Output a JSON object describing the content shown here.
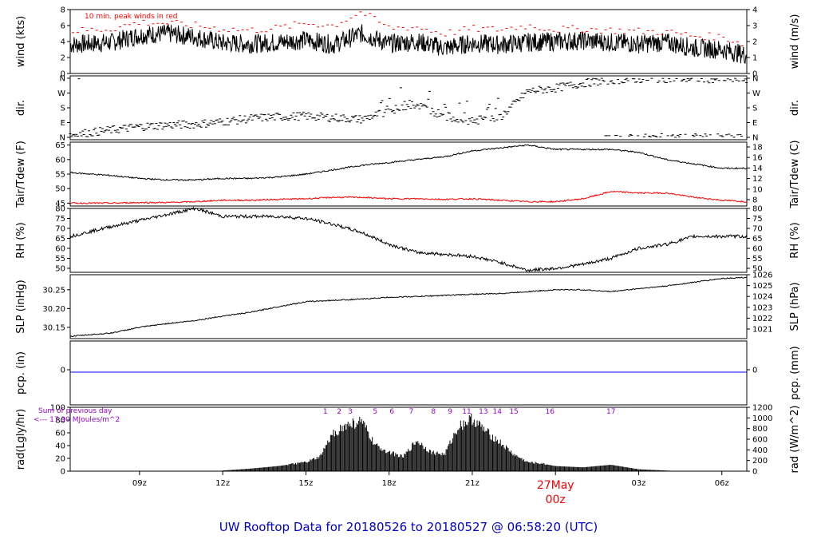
{
  "title": "UW Rooftop Data for 20180526  to  20180527 @ 06:58:20  (UTC)",
  "x_ticks": [
    "09z",
    "12z",
    "15z",
    "18z",
    "21z",
    "27May",
    "03z",
    "06z"
  ],
  "date_label": "27May",
  "date_sub": "00z",
  "colors": {
    "line": "#000000",
    "peak": "#ff0000",
    "dew": "#ff0000",
    "precip": "#0000ff",
    "annot": "#9900cc",
    "title": "#0000cc"
  },
  "panels": {
    "wind": {
      "left_label": "wind (kts)",
      "right_label": "wind (m/s)",
      "left_ticks": [
        "0",
        "2",
        "4",
        "6",
        "8"
      ],
      "right_ticks": [
        "0",
        "1",
        "2",
        "3",
        "4"
      ],
      "annotation": "10 min. peak winds in red"
    },
    "dir": {
      "left_label": "dir.",
      "right_label": "dir.",
      "left_ticks": [
        "N",
        "E",
        "S",
        "W",
        "N"
      ],
      "right_ticks": [
        "N",
        "E",
        "S",
        "W",
        "N"
      ]
    },
    "temp": {
      "left_label": "Tair/Tdew (F)",
      "right_label": "Tair/Tdew (C)",
      "left_ticks": [
        "45",
        "50",
        "55",
        "60",
        "65"
      ],
      "right_ticks": [
        "8",
        "10",
        "12",
        "14",
        "16",
        "18"
      ]
    },
    "rh": {
      "left_label": "RH (%)",
      "right_label": "RH (%)",
      "left_ticks": [
        "50",
        "55",
        "60",
        "65",
        "70",
        "75",
        "80"
      ],
      "right_ticks": [
        "50",
        "55",
        "60",
        "65",
        "70",
        "75",
        "80"
      ]
    },
    "slp": {
      "left_label": "SLP (inHg)",
      "right_label": "SLP (hPa)",
      "left_ticks": [
        "30.15",
        "30.20",
        "30.25"
      ],
      "right_ticks": [
        "1021",
        "1022",
        "1023",
        "1024",
        "1025",
        "1026"
      ]
    },
    "pcp": {
      "left_label": "pcp. (in)",
      "right_label": "pcp. (mm)",
      "left_ticks": [
        "0"
      ],
      "right_ticks": [
        "0"
      ]
    },
    "rad": {
      "left_label": "rad(Lgly/hr)",
      "right_label": "rad (W/m^2)",
      "left_ticks": [
        "0",
        "20",
        "40",
        "60",
        "80",
        "100"
      ],
      "right_ticks": [
        "0",
        "200",
        "400",
        "600",
        "800",
        "1000",
        "1200"
      ],
      "annotation_line1": "Sum of previous day",
      "annotation_line2": "<--- 17.90 MJoules/m^2",
      "hour_marks": [
        "1",
        "2",
        "3",
        "5",
        "6",
        "7",
        "8",
        "9",
        "11",
        "13",
        "14",
        "15",
        "16",
        "17"
      ]
    }
  },
  "chart_data": [
    {
      "type": "line",
      "title": "wind",
      "ylabel": "wind (kts)",
      "ylim": [
        0,
        8
      ],
      "x_hours": [
        6.5,
        8,
        9,
        10,
        11,
        12,
        13,
        14,
        15,
        16,
        17,
        18,
        19,
        20,
        21,
        22,
        23,
        24,
        25,
        26,
        27,
        28,
        29,
        30,
        30.9
      ],
      "series": [
        {
          "name": "wind",
          "values": [
            3.6,
            3.9,
            4.8,
            5.0,
            4.6,
            3.8,
            3.7,
            3.9,
            4.2,
            3.6,
            5.0,
            3.7,
            4.0,
            3.2,
            3.8,
            3.6,
            3.9,
            4.0,
            4.1,
            3.9,
            3.7,
            3.9,
            3.2,
            3.0,
            2.3
          ]
        },
        {
          "name": "10 min. peak",
          "values": [
            5.3,
            5.6,
            6.4,
            6.3,
            6.0,
            5.6,
            5.4,
            5.7,
            6.3,
            6.0,
            7.7,
            5.7,
            5.8,
            5.0,
            5.6,
            5.5,
            6.0,
            5.5,
            5.6,
            5.4,
            5.3,
            5.2,
            4.7,
            4.6,
            3.6
          ]
        }
      ]
    },
    {
      "type": "scatter",
      "title": "dir.",
      "ylabel": "dir.",
      "ylim": [
        0,
        360
      ],
      "x_hours": [
        6.5,
        8,
        9,
        10,
        11,
        12,
        13,
        14,
        15,
        16,
        17,
        18,
        19,
        20,
        21,
        22,
        23,
        24,
        25,
        26,
        27,
        28,
        29,
        30,
        30.9
      ],
      "series": [
        {
          "name": "direction",
          "values": [
            15,
            45,
            65,
            75,
            80,
            95,
            115,
            125,
            130,
            120,
            110,
            160,
            200,
            130,
            100,
            120,
            280,
            300,
            330,
            350,
            355,
            358,
            358,
            355,
            355
          ]
        }
      ]
    },
    {
      "type": "line",
      "title": "Tair/Tdew",
      "ylabel": "Tair/Tdew (F)",
      "ylim": [
        44,
        66
      ],
      "x_hours": [
        6.5,
        8,
        9,
        10,
        11,
        12,
        13,
        14,
        15,
        16,
        17,
        18,
        19,
        20,
        21,
        22,
        23,
        24,
        25,
        26,
        27,
        28,
        29,
        30,
        30.9
      ],
      "series": [
        {
          "name": "Tair",
          "values": [
            55.5,
            54.5,
            53.5,
            53.0,
            53.0,
            53.5,
            53.5,
            54.0,
            55.0,
            56.5,
            58.0,
            59.0,
            60.0,
            61.0,
            63.0,
            64.0,
            65.0,
            63.5,
            63.5,
            63.5,
            62.5,
            60.0,
            58.5,
            57.0,
            57.0
          ]
        },
        {
          "name": "Tdew",
          "values": [
            45.0,
            45.0,
            45.2,
            45.2,
            45.5,
            46.0,
            46.0,
            46.3,
            46.5,
            47.0,
            47.0,
            46.5,
            46.5,
            46.3,
            46.5,
            46.0,
            45.5,
            45.5,
            46.5,
            49.0,
            48.5,
            48.5,
            47.0,
            46.0,
            45.5
          ]
        }
      ]
    },
    {
      "type": "line",
      "title": "RH",
      "ylabel": "RH (%)",
      "ylim": [
        48,
        80
      ],
      "x_hours": [
        6.5,
        8,
        9,
        10,
        11,
        12,
        13,
        14,
        15,
        16,
        17,
        18,
        19,
        20,
        21,
        22,
        23,
        24,
        25,
        26,
        27,
        28,
        29,
        30,
        30.9
      ],
      "series": [
        {
          "name": "RH",
          "values": [
            66,
            71,
            74,
            77,
            80,
            76,
            76,
            76,
            75,
            72,
            68,
            62,
            58,
            57,
            56,
            53,
            49,
            50,
            52,
            55,
            60,
            62,
            66,
            66,
            66
          ]
        }
      ]
    },
    {
      "type": "line",
      "title": "SLP",
      "ylabel": "SLP (inHg)",
      "ylim": [
        30.12,
        30.29
      ],
      "x_hours": [
        6.5,
        8,
        9,
        10,
        11,
        12,
        13,
        14,
        15,
        16,
        17,
        18,
        19,
        20,
        21,
        22,
        23,
        24,
        25,
        26,
        27,
        28,
        29,
        30,
        30.9
      ],
      "series": [
        {
          "name": "SLP",
          "values": [
            30.126,
            30.135,
            30.15,
            30.16,
            30.168,
            30.18,
            30.19,
            30.205,
            30.218,
            30.222,
            30.225,
            30.23,
            30.232,
            30.235,
            30.238,
            30.24,
            30.245,
            30.25,
            30.25,
            30.245,
            30.253,
            30.26,
            30.27,
            30.28,
            30.283
          ]
        }
      ]
    },
    {
      "type": "line",
      "title": "pcp.",
      "ylabel": "pcp. (in)",
      "ylim": [
        -1,
        1
      ],
      "x_hours": [
        6.5,
        30.9
      ],
      "series": [
        {
          "name": "precip",
          "values": [
            0,
            0
          ]
        }
      ]
    },
    {
      "type": "area",
      "title": "rad",
      "ylabel": "rad(Lgly/hr)",
      "ylim": [
        0,
        100
      ],
      "x_hours": [
        6.5,
        11.9,
        12,
        13,
        14,
        15,
        15.5,
        16,
        16.5,
        17,
        17.5,
        18,
        18.5,
        19,
        19.5,
        20,
        20.5,
        21,
        21.5,
        22,
        22.5,
        23,
        23.5,
        24,
        25,
        26,
        27,
        28,
        28.5,
        30.9
      ],
      "series": [
        {
          "name": "radiation",
          "values": [
            0,
            0,
            1,
            4,
            8,
            14,
            22,
            60,
            72,
            78,
            40,
            30,
            22,
            48,
            30,
            26,
            70,
            82,
            62,
            45,
            26,
            14,
            12,
            8,
            6,
            10,
            3,
            1,
            0,
            0
          ]
        }
      ]
    }
  ]
}
